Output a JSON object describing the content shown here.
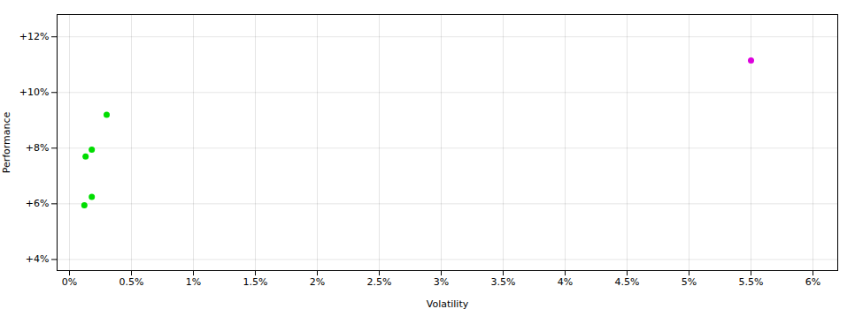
{
  "chart_data": {
    "type": "scatter",
    "xlabel": "Volatility",
    "ylabel": "Performance",
    "xlim": [
      -0.001,
      0.062
    ],
    "ylim": [
      0.036,
      0.128
    ],
    "xticks": [
      {
        "value": 0,
        "label": "0%"
      },
      {
        "value": 0.005,
        "label": "0.5%"
      },
      {
        "value": 0.01,
        "label": "1%"
      },
      {
        "value": 0.015,
        "label": "1.5%"
      },
      {
        "value": 0.02,
        "label": "2%"
      },
      {
        "value": 0.025,
        "label": "2.5%"
      },
      {
        "value": 0.03,
        "label": "3%"
      },
      {
        "value": 0.035,
        "label": "3.5%"
      },
      {
        "value": 0.04,
        "label": "4%"
      },
      {
        "value": 0.045,
        "label": "4.5%"
      },
      {
        "value": 0.05,
        "label": "5%"
      },
      {
        "value": 0.055,
        "label": "5.5%"
      },
      {
        "value": 0.06,
        "label": "6%"
      }
    ],
    "yticks": [
      {
        "value": 0.04,
        "label": "+4%"
      },
      {
        "value": 0.06,
        "label": "+6%"
      },
      {
        "value": 0.08,
        "label": "+8%"
      },
      {
        "value": 0.1,
        "label": "+10%"
      },
      {
        "value": 0.12,
        "label": "+12%"
      }
    ],
    "grid": true,
    "series": [
      {
        "color": "#00dd00",
        "x": [
          0.0012,
          0.0018,
          0.0013,
          0.0018,
          0.003
        ],
        "values": [
          0.0595,
          0.0625,
          0.077,
          0.0795,
          0.092
        ]
      },
      {
        "color": "#dd00dd",
        "x": [
          0.055
        ],
        "values": [
          0.1115
        ]
      }
    ]
  }
}
